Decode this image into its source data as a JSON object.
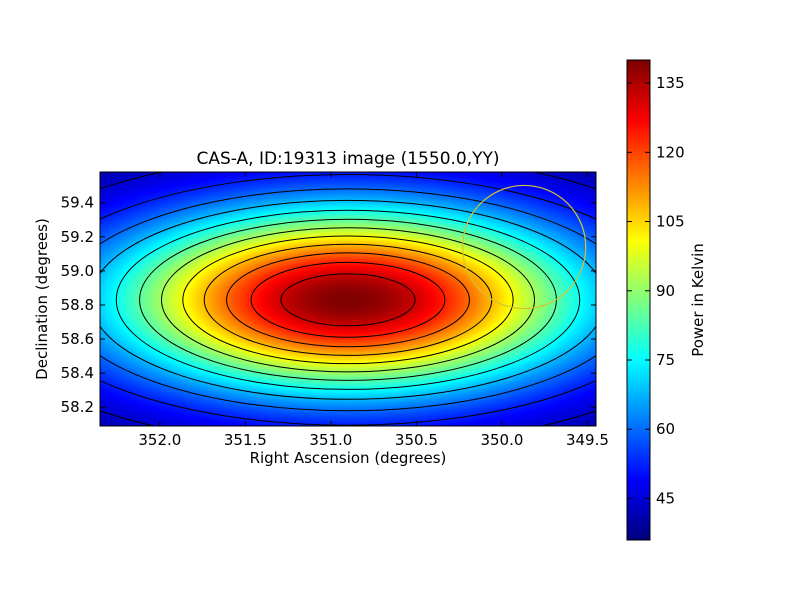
{
  "chart_data": {
    "type": "heatmap",
    "title": "CAS-A, ID:19313 image (1550.0,YY)",
    "xlabel": "Right Ascension (degrees)",
    "ylabel": "Declination (degrees)",
    "xlim": [
      352.35,
      349.45
    ],
    "ylim": [
      58.09,
      59.58
    ],
    "x_ticks": [
      352.0,
      351.5,
      351.0,
      350.5,
      350.0,
      349.5
    ],
    "x_tick_labels": [
      "352.0",
      "351.5",
      "351.0",
      "350.5",
      "350.0",
      "349.5"
    ],
    "y_ticks": [
      58.2,
      58.4,
      58.6,
      58.8,
      59.0,
      59.2,
      59.4
    ],
    "y_tick_labels": [
      "58.2",
      "58.4",
      "58.6",
      "58.8",
      "59.0",
      "59.2",
      "59.4"
    ],
    "colorbar": {
      "label": "Power in Kelvin",
      "min": 36,
      "max": 140,
      "ticks": [
        45,
        60,
        75,
        90,
        105,
        120,
        135
      ],
      "tick_labels": [
        "45",
        "60",
        "75",
        "90",
        "105",
        "120",
        "135"
      ],
      "colormap": "jet"
    },
    "source": {
      "center_ra": 350.9,
      "center_dec": 58.83,
      "peak_power": 140,
      "background_power": 36,
      "width_ra": 0.98,
      "width_dec": 0.38
    },
    "contour_levels": [
      36,
      44,
      52,
      60,
      68,
      76,
      84,
      92,
      100,
      108,
      116,
      124,
      132
    ],
    "circle": {
      "center_ra": 349.87,
      "center_dec": 59.14,
      "radius_deg": 0.36,
      "color": "#d4c432"
    },
    "grid": false
  }
}
